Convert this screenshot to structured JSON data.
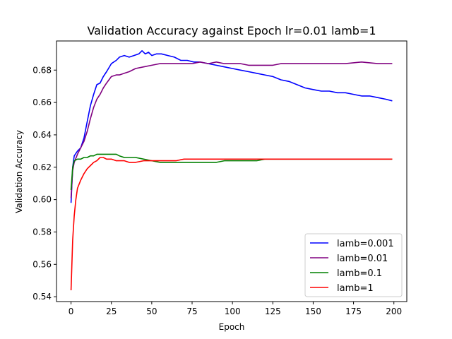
{
  "chart_data": {
    "type": "line",
    "title": "Validation Accuracy against Epoch lr=0.01 lamb=1",
    "xlabel": "Epoch",
    "ylabel": "Validation Accuracy",
    "xlim": [
      -9,
      208
    ],
    "ylim": [
      0.537,
      0.698
    ],
    "xticks": [
      0,
      25,
      50,
      75,
      100,
      125,
      150,
      175,
      200
    ],
    "yticks": [
      0.54,
      0.56,
      0.58,
      0.6,
      0.62,
      0.64,
      0.66,
      0.68
    ],
    "ytick_labels": [
      "0.54",
      "0.56",
      "0.58",
      "0.60",
      "0.62",
      "0.64",
      "0.66",
      "0.68"
    ],
    "grid": false,
    "legend_position": "lower-right",
    "series": [
      {
        "name": "lamb=0.001",
        "color": "#0000ff",
        "points": [
          [
            0,
            0.598
          ],
          [
            1,
            0.62
          ],
          [
            2,
            0.627
          ],
          [
            4,
            0.63
          ],
          [
            6,
            0.632
          ],
          [
            8,
            0.638
          ],
          [
            10,
            0.648
          ],
          [
            12,
            0.658
          ],
          [
            14,
            0.665
          ],
          [
            16,
            0.671
          ],
          [
            18,
            0.672
          ],
          [
            20,
            0.676
          ],
          [
            22,
            0.679
          ],
          [
            25,
            0.684
          ],
          [
            28,
            0.686
          ],
          [
            30,
            0.688
          ],
          [
            33,
            0.689
          ],
          [
            36,
            0.688
          ],
          [
            39,
            0.689
          ],
          [
            42,
            0.69
          ],
          [
            44,
            0.692
          ],
          [
            46,
            0.69
          ],
          [
            48,
            0.691
          ],
          [
            50,
            0.689
          ],
          [
            53,
            0.69
          ],
          [
            56,
            0.69
          ],
          [
            60,
            0.689
          ],
          [
            64,
            0.688
          ],
          [
            68,
            0.686
          ],
          [
            72,
            0.686
          ],
          [
            76,
            0.685
          ],
          [
            80,
            0.685
          ],
          [
            85,
            0.684
          ],
          [
            90,
            0.683
          ],
          [
            95,
            0.682
          ],
          [
            100,
            0.681
          ],
          [
            105,
            0.68
          ],
          [
            110,
            0.679
          ],
          [
            115,
            0.678
          ],
          [
            120,
            0.677
          ],
          [
            125,
            0.676
          ],
          [
            130,
            0.674
          ],
          [
            135,
            0.673
          ],
          [
            140,
            0.671
          ],
          [
            145,
            0.669
          ],
          [
            150,
            0.668
          ],
          [
            155,
            0.667
          ],
          [
            160,
            0.667
          ],
          [
            165,
            0.666
          ],
          [
            170,
            0.666
          ],
          [
            175,
            0.665
          ],
          [
            180,
            0.664
          ],
          [
            185,
            0.664
          ],
          [
            190,
            0.663
          ],
          [
            195,
            0.662
          ],
          [
            199,
            0.661
          ]
        ]
      },
      {
        "name": "lamb=0.01",
        "color": "#800080",
        "points": [
          [
            0,
            0.601
          ],
          [
            1,
            0.618
          ],
          [
            2,
            0.623
          ],
          [
            4,
            0.628
          ],
          [
            6,
            0.632
          ],
          [
            8,
            0.636
          ],
          [
            10,
            0.642
          ],
          [
            12,
            0.65
          ],
          [
            14,
            0.657
          ],
          [
            16,
            0.662
          ],
          [
            18,
            0.665
          ],
          [
            20,
            0.669
          ],
          [
            22,
            0.672
          ],
          [
            25,
            0.676
          ],
          [
            28,
            0.677
          ],
          [
            30,
            0.677
          ],
          [
            33,
            0.678
          ],
          [
            36,
            0.679
          ],
          [
            40,
            0.681
          ],
          [
            45,
            0.682
          ],
          [
            50,
            0.683
          ],
          [
            55,
            0.684
          ],
          [
            60,
            0.684
          ],
          [
            65,
            0.684
          ],
          [
            70,
            0.684
          ],
          [
            75,
            0.684
          ],
          [
            80,
            0.685
          ],
          [
            85,
            0.684
          ],
          [
            90,
            0.685
          ],
          [
            95,
            0.684
          ],
          [
            100,
            0.684
          ],
          [
            105,
            0.684
          ],
          [
            110,
            0.683
          ],
          [
            115,
            0.683
          ],
          [
            120,
            0.683
          ],
          [
            125,
            0.683
          ],
          [
            130,
            0.684
          ],
          [
            140,
            0.684
          ],
          [
            150,
            0.684
          ],
          [
            160,
            0.684
          ],
          [
            170,
            0.684
          ],
          [
            180,
            0.685
          ],
          [
            190,
            0.684
          ],
          [
            199,
            0.684
          ]
        ]
      },
      {
        "name": "lamb=0.1",
        "color": "#008000",
        "points": [
          [
            0,
            0.606
          ],
          [
            1,
            0.62
          ],
          [
            2,
            0.624
          ],
          [
            4,
            0.625
          ],
          [
            6,
            0.625
          ],
          [
            8,
            0.626
          ],
          [
            10,
            0.626
          ],
          [
            12,
            0.627
          ],
          [
            14,
            0.627
          ],
          [
            16,
            0.628
          ],
          [
            18,
            0.628
          ],
          [
            20,
            0.628
          ],
          [
            22,
            0.628
          ],
          [
            25,
            0.628
          ],
          [
            28,
            0.628
          ],
          [
            30,
            0.627
          ],
          [
            33,
            0.626
          ],
          [
            36,
            0.626
          ],
          [
            40,
            0.626
          ],
          [
            45,
            0.625
          ],
          [
            50,
            0.624
          ],
          [
            55,
            0.623
          ],
          [
            60,
            0.623
          ],
          [
            65,
            0.623
          ],
          [
            70,
            0.623
          ],
          [
            75,
            0.623
          ],
          [
            80,
            0.623
          ],
          [
            85,
            0.623
          ],
          [
            90,
            0.623
          ],
          [
            95,
            0.624
          ],
          [
            100,
            0.624
          ],
          [
            105,
            0.624
          ],
          [
            110,
            0.624
          ],
          [
            115,
            0.624
          ],
          [
            120,
            0.625
          ],
          [
            125,
            0.625
          ],
          [
            130,
            0.625
          ],
          [
            135,
            0.625
          ],
          [
            140,
            0.625
          ],
          [
            145,
            0.625
          ],
          [
            150,
            0.625
          ],
          [
            155,
            0.625
          ],
          [
            160,
            0.625
          ],
          [
            165,
            0.625
          ],
          [
            170,
            0.625
          ],
          [
            175,
            0.625
          ],
          [
            180,
            0.625
          ],
          [
            185,
            0.625
          ],
          [
            190,
            0.625
          ],
          [
            195,
            0.625
          ],
          [
            199,
            0.625
          ]
        ]
      },
      {
        "name": "lamb=1",
        "color": "#ff0000",
        "points": [
          [
            0,
            0.544
          ],
          [
            1,
            0.575
          ],
          [
            2,
            0.59
          ],
          [
            3,
            0.6
          ],
          [
            4,
            0.607
          ],
          [
            6,
            0.612
          ],
          [
            8,
            0.616
          ],
          [
            10,
            0.619
          ],
          [
            12,
            0.621
          ],
          [
            14,
            0.623
          ],
          [
            16,
            0.624
          ],
          [
            18,
            0.626
          ],
          [
            20,
            0.626
          ],
          [
            22,
            0.625
          ],
          [
            25,
            0.625
          ],
          [
            28,
            0.624
          ],
          [
            30,
            0.624
          ],
          [
            33,
            0.624
          ],
          [
            36,
            0.623
          ],
          [
            40,
            0.623
          ],
          [
            45,
            0.624
          ],
          [
            50,
            0.624
          ],
          [
            55,
            0.624
          ],
          [
            60,
            0.624
          ],
          [
            65,
            0.624
          ],
          [
            70,
            0.625
          ],
          [
            75,
            0.625
          ],
          [
            80,
            0.625
          ],
          [
            85,
            0.625
          ],
          [
            90,
            0.625
          ],
          [
            95,
            0.625
          ],
          [
            100,
            0.625
          ],
          [
            110,
            0.625
          ],
          [
            120,
            0.625
          ],
          [
            130,
            0.625
          ],
          [
            140,
            0.625
          ],
          [
            150,
            0.625
          ],
          [
            160,
            0.625
          ],
          [
            170,
            0.625
          ],
          [
            180,
            0.625
          ],
          [
            190,
            0.625
          ],
          [
            199,
            0.625
          ]
        ]
      }
    ]
  }
}
